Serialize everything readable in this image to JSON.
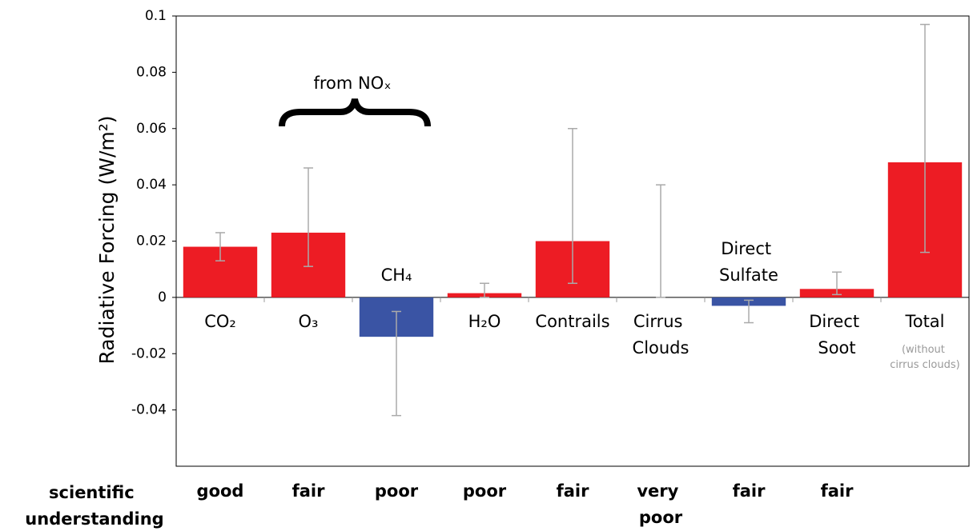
{
  "chart_data": {
    "type": "bar",
    "y_label": "Radiative Forcing (W/m²)",
    "categories": [
      "CO₂",
      "O₃",
      "CH₄",
      "H₂O",
      "Contrails",
      "Cirrus Clouds",
      "Direct Sulfate",
      "Direct Soot",
      "Total"
    ],
    "values": [
      0.018,
      0.023,
      -0.014,
      0.0015,
      0.02,
      0,
      -0.003,
      0.003,
      0.048
    ],
    "error_low": [
      0.013,
      0.011,
      -0.042,
      0,
      0.005,
      0,
      -0.009,
      0.001,
      0.016
    ],
    "error_high": [
      0.023,
      0.046,
      -0.005,
      0.005,
      0.06,
      0.04,
      -0.001,
      0.009,
      0.097
    ],
    "colors": [
      "#ed1c24",
      "#ed1c24",
      "#3a54a4",
      "#ed1c24",
      "#ed1c24",
      "#ed1c24",
      "#3a54a4",
      "#ed1c24",
      "#ed1c24"
    ],
    "ylim": [
      -0.06,
      0.1
    ],
    "yticks": [
      -0.04,
      -0.02,
      0,
      0.02,
      0.04,
      0.06,
      0.08,
      0.1
    ],
    "annotation": "from NOₓ",
    "total_note": "(without cirrus clouds)",
    "understanding_label": "scientific understanding",
    "understanding": [
      "good",
      "fair",
      "poor",
      "poor",
      "fair",
      "very poor",
      "fair",
      "fair",
      null
    ]
  }
}
